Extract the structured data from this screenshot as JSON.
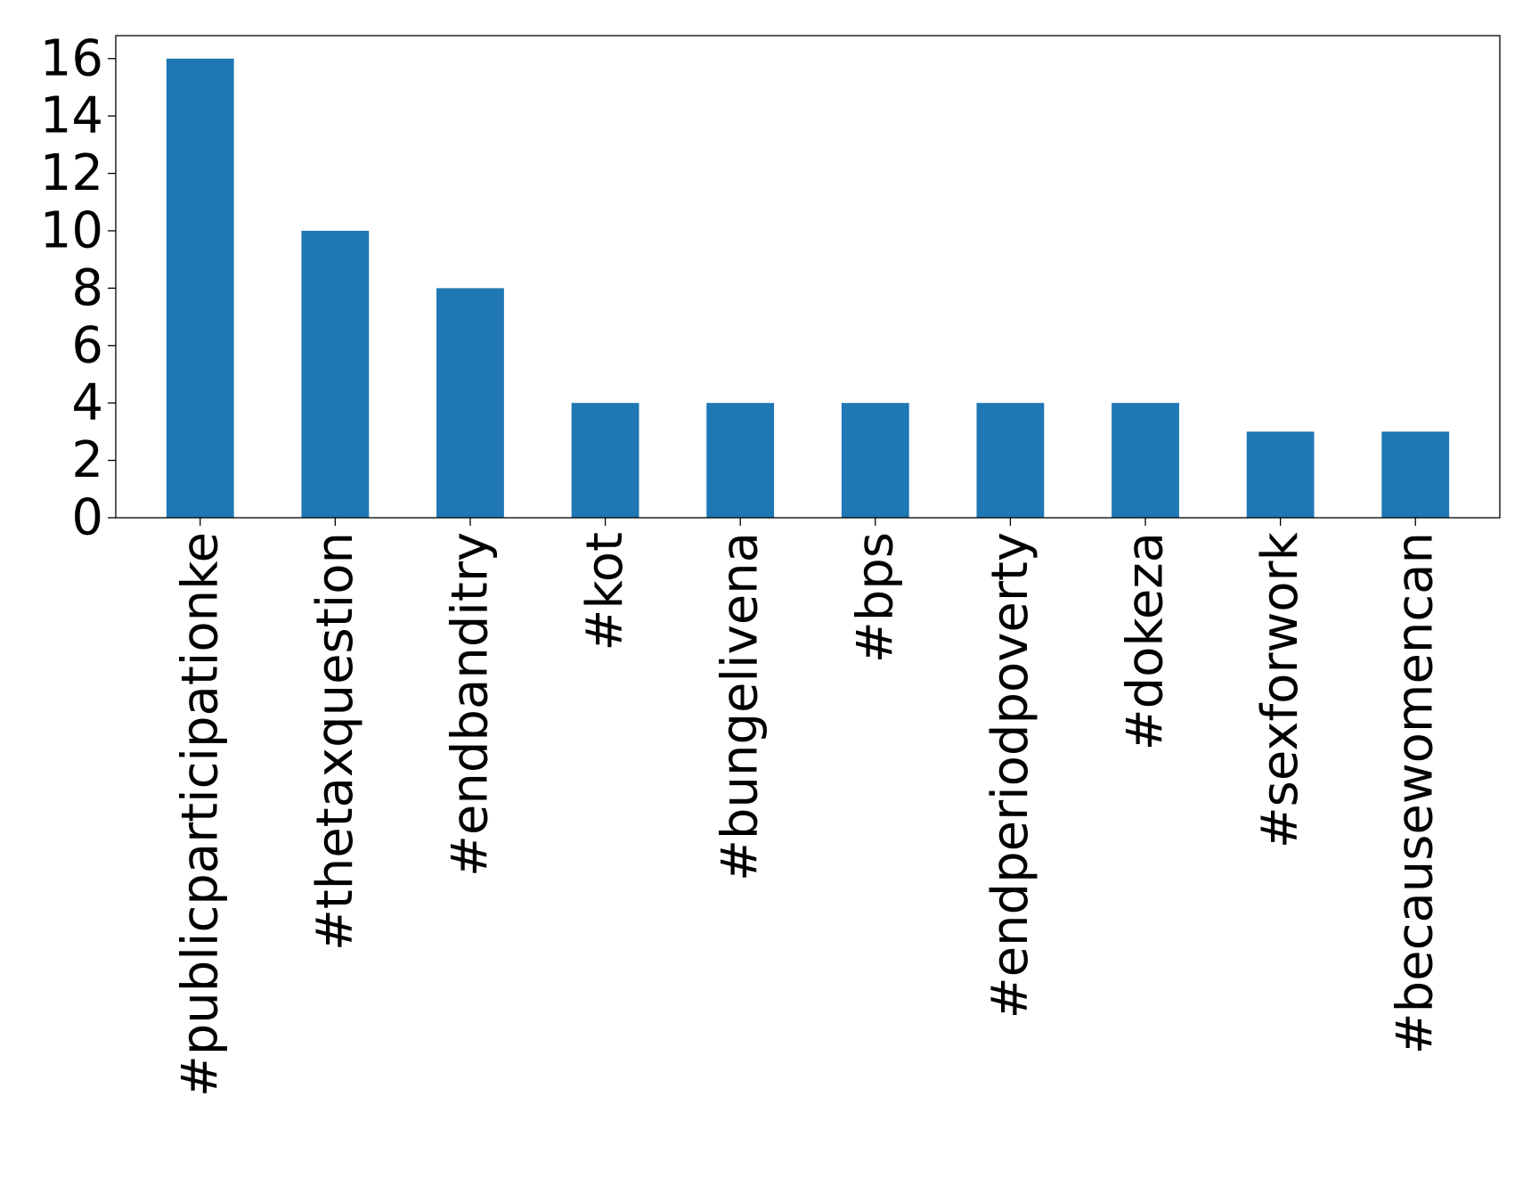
{
  "chart_data": {
    "type": "bar",
    "title": "",
    "xlabel": "",
    "ylabel": "",
    "categories": [
      "#publicparticipationke",
      "#thetaxquestion",
      "#endbanditry",
      "#kot",
      "#bungelivena",
      "#bps",
      "#endperiodpoverty",
      "#dokeza",
      "#sexforwork",
      "#becausewomencan"
    ],
    "values": [
      16,
      10,
      8,
      4,
      4,
      4,
      4,
      4,
      3,
      3
    ],
    "ylim": [
      0,
      16.8
    ],
    "yticks": [
      0,
      2,
      4,
      6,
      8,
      10,
      12,
      14,
      16
    ],
    "ytick_labels": [
      "0",
      "2",
      "4",
      "6",
      "8",
      "10",
      "12",
      "14",
      "16"
    ],
    "bar_color": "#1f77b4",
    "grid": false,
    "legend": "none"
  }
}
